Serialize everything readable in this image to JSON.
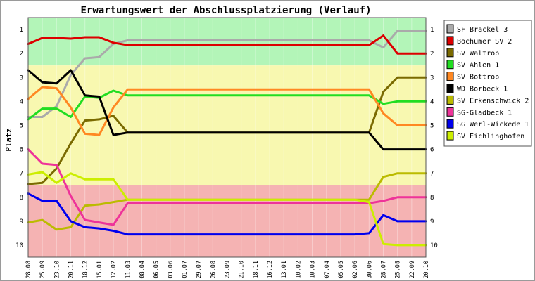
{
  "chart_data": {
    "type": "line",
    "title": "Erwartungswert der Abschlussplatzierung (Verlauf)",
    "xlabel": "",
    "ylabel": "Platz",
    "ylim": [
      0.5,
      10.5
    ],
    "y_inverted": true,
    "y_ticks": [
      1,
      2,
      3,
      4,
      5,
      6,
      7,
      8,
      9,
      10
    ],
    "grid": false,
    "legend_position": "right",
    "x": [
      "28.08",
      "25.09",
      "23.10",
      "20.11",
      "18.12",
      "15.01",
      "12.02",
      "11.03",
      "08.04",
      "06.05",
      "03.06",
      "01.07",
      "29.07",
      "26.08",
      "23.09",
      "21.10",
      "18.11",
      "16.12",
      "13.01",
      "10.02",
      "10.03",
      "07.04",
      "05.05",
      "02.06",
      "30.06",
      "28.07",
      "25.08",
      "22.09",
      "20.10"
    ],
    "zones": [
      {
        "from": 0.5,
        "to": 2.5,
        "color": "#b3f5b8"
      },
      {
        "from": 2.5,
        "to": 7.5,
        "color": "#f8f8b0"
      },
      {
        "from": 7.5,
        "to": 10.5,
        "color": "#f5b3b3"
      }
    ],
    "series": [
      {
        "name": "SF Brackel 3",
        "color": "#aaaaaa",
        "values": [
          4.65,
          4.65,
          4.2,
          2.9,
          2.2,
          2.15,
          1.6,
          1.45,
          1.45,
          1.45,
          1.45,
          1.45,
          1.45,
          1.45,
          1.45,
          1.45,
          1.45,
          1.45,
          1.45,
          1.45,
          1.45,
          1.45,
          1.45,
          1.45,
          1.45,
          1.75,
          1.05,
          1.05,
          1.05
        ]
      },
      {
        "name": "Bochumer SV 2",
        "color": "#dd0000",
        "values": [
          1.6,
          1.35,
          1.35,
          1.38,
          1.32,
          1.32,
          1.55,
          1.65,
          1.65,
          1.65,
          1.65,
          1.65,
          1.65,
          1.65,
          1.65,
          1.65,
          1.65,
          1.65,
          1.65,
          1.65,
          1.65,
          1.65,
          1.65,
          1.65,
          1.65,
          1.25,
          2.0,
          2.0,
          2.0
        ]
      },
      {
        "name": "SV Waltrop",
        "color": "#7a6a00",
        "values": [
          7.45,
          7.4,
          6.8,
          5.75,
          4.8,
          4.75,
          4.6,
          5.3,
          5.3,
          5.3,
          5.3,
          5.3,
          5.3,
          5.3,
          5.3,
          5.3,
          5.3,
          5.3,
          5.3,
          5.3,
          5.3,
          5.3,
          5.3,
          5.3,
          5.3,
          3.6,
          3.0,
          3.0,
          3.0
        ]
      },
      {
        "name": "SV Ahlen 1",
        "color": "#22dd22",
        "values": [
          4.75,
          4.3,
          4.3,
          4.65,
          3.8,
          3.85,
          3.55,
          3.75,
          3.75,
          3.75,
          3.75,
          3.75,
          3.75,
          3.75,
          3.75,
          3.75,
          3.75,
          3.75,
          3.75,
          3.75,
          3.75,
          3.75,
          3.75,
          3.75,
          3.75,
          4.1,
          4.0,
          4.0,
          4.0
        ]
      },
      {
        "name": "SV Bottrop",
        "color": "#ff8822",
        "values": [
          3.9,
          3.4,
          3.45,
          4.25,
          5.35,
          5.4,
          4.25,
          3.5,
          3.5,
          3.5,
          3.5,
          3.5,
          3.5,
          3.5,
          3.5,
          3.5,
          3.5,
          3.5,
          3.5,
          3.5,
          3.5,
          3.5,
          3.5,
          3.5,
          3.5,
          4.5,
          5.0,
          5.0,
          5.0
        ]
      },
      {
        "name": "WD Borbeck 1",
        "color": "#000000",
        "values": [
          2.7,
          3.2,
          3.25,
          2.7,
          3.75,
          3.8,
          5.4,
          5.3,
          5.3,
          5.3,
          5.3,
          5.3,
          5.3,
          5.3,
          5.3,
          5.3,
          5.3,
          5.3,
          5.3,
          5.3,
          5.3,
          5.3,
          5.3,
          5.3,
          5.3,
          6.0,
          6.0,
          6.0,
          6.0
        ]
      },
      {
        "name": "SV Erkenschwick 2",
        "color": "#bbbb00",
        "values": [
          9.05,
          8.95,
          9.35,
          9.25,
          8.35,
          8.3,
          8.2,
          8.1,
          8.1,
          8.1,
          8.1,
          8.1,
          8.1,
          8.1,
          8.1,
          8.1,
          8.1,
          8.1,
          8.1,
          8.1,
          8.1,
          8.1,
          8.1,
          8.1,
          8.1,
          7.15,
          7.0,
          7.0,
          7.0
        ]
      },
      {
        "name": "SG-Gladbeck 1",
        "color": "#ee3399",
        "values": [
          6.0,
          6.6,
          6.65,
          7.95,
          8.95,
          9.05,
          9.15,
          8.25,
          8.25,
          8.25,
          8.25,
          8.25,
          8.25,
          8.25,
          8.25,
          8.25,
          8.25,
          8.25,
          8.25,
          8.25,
          8.25,
          8.25,
          8.25,
          8.25,
          8.25,
          8.15,
          8.0,
          8.0,
          8.0
        ]
      },
      {
        "name": "SG Werl-Wickede 1",
        "color": "#0000ee",
        "values": [
          7.85,
          8.15,
          8.15,
          9.0,
          9.25,
          9.3,
          9.4,
          9.55,
          9.55,
          9.55,
          9.55,
          9.55,
          9.55,
          9.55,
          9.55,
          9.55,
          9.55,
          9.55,
          9.55,
          9.55,
          9.55,
          9.55,
          9.55,
          9.55,
          9.5,
          8.75,
          9.0,
          9.0,
          9.0
        ]
      },
      {
        "name": "SV Eichlinghofen",
        "color": "#ccee00",
        "values": [
          7.05,
          6.95,
          7.4,
          7.0,
          7.25,
          7.25,
          7.25,
          8.1,
          8.1,
          8.1,
          8.1,
          8.1,
          8.1,
          8.1,
          8.1,
          8.1,
          8.1,
          8.1,
          8.1,
          8.1,
          8.1,
          8.1,
          8.1,
          8.1,
          8.2,
          9.95,
          10.0,
          10.0,
          10.0
        ]
      }
    ]
  }
}
